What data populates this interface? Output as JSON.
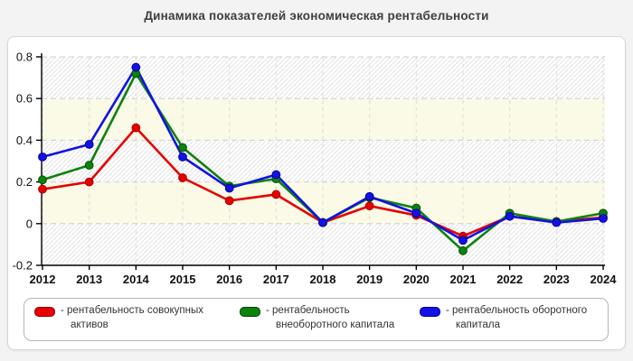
{
  "title": "Динамика показателей экономическая рентабельности",
  "chart_data": {
    "type": "line",
    "title": "Динамика показателей экономическая рентабельности",
    "categories": [
      "2012",
      "2013",
      "2014",
      "2015",
      "2016",
      "2017",
      "2018",
      "2019",
      "2020",
      "2021",
      "2022",
      "2023",
      "2024"
    ],
    "series": [
      {
        "name": "рентабельность совокупных активов",
        "color": "#e60000",
        "edge": "#a80000",
        "values": [
          0.165,
          0.2,
          0.46,
          0.22,
          0.11,
          0.14,
          0.005,
          0.085,
          0.04,
          -0.06,
          0.035,
          0.01,
          0.03
        ]
      },
      {
        "name": "рентабельность внеоборотного капитала",
        "color": "#0c830c",
        "edge": "#075007",
        "values": [
          0.21,
          0.28,
          0.72,
          0.365,
          0.18,
          0.215,
          0.005,
          0.125,
          0.075,
          -0.13,
          0.05,
          0.01,
          0.05
        ]
      },
      {
        "name": "рентабельность оборотного капитала",
        "color": "#1212e6",
        "edge": "#0000a0",
        "values": [
          0.32,
          0.38,
          0.75,
          0.32,
          0.17,
          0.235,
          0.005,
          0.13,
          0.05,
          -0.08,
          0.035,
          0.005,
          0.025
        ]
      }
    ],
    "xlabel": "",
    "ylabel": "",
    "ylim": [
      -0.2,
      0.8
    ],
    "yticks": [
      -0.2,
      0,
      0.2,
      0.4,
      0.6,
      0.8
    ],
    "ytick_labels": [
      "-0.2",
      "0",
      "0.2",
      "0.4",
      "0.6",
      "0.8"
    ],
    "grid": "dashed",
    "legend_position": "bottom"
  },
  "legend": {
    "items": [
      {
        "label_line1": "- рентабельность совокупных",
        "label_line2": "активов",
        "color": "#e60000",
        "edge": "#8f0000"
      },
      {
        "label_line1": "- рентабельность",
        "label_line2": "внеоборотного капитала",
        "color": "#0c830c",
        "edge": "#064006"
      },
      {
        "label_line1": "- рентабельность оборотного",
        "label_line2": "капитала",
        "color": "#1212e6",
        "edge": "#00008f"
      }
    ]
  }
}
